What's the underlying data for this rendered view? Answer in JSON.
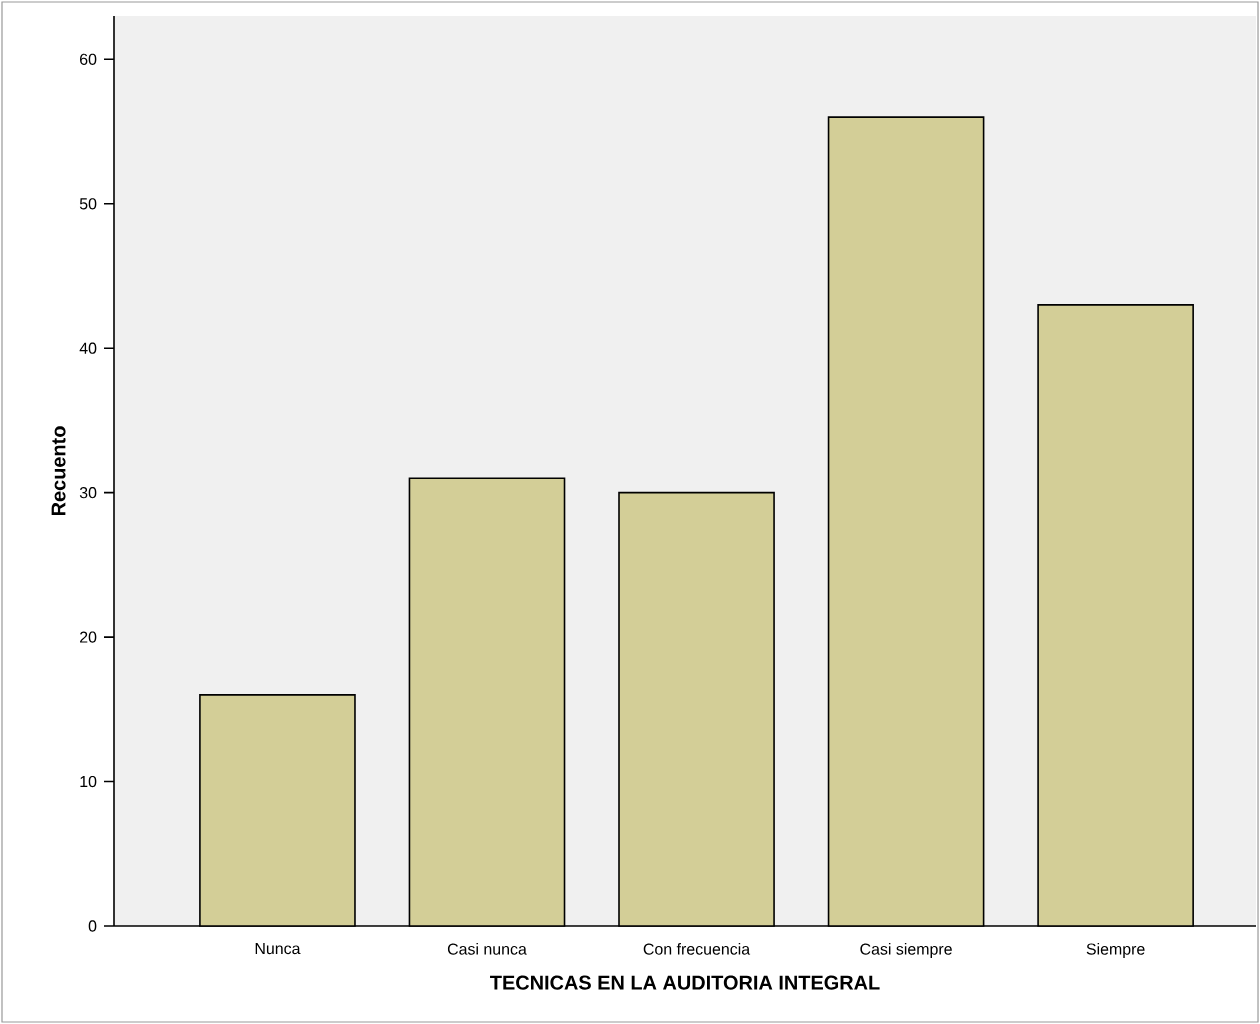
{
  "chart_data": {
    "type": "bar",
    "xlabel": "TECNICAS EN LA AUDITORIA INTEGRAL",
    "ylabel": "Recuento",
    "categories": [
      "Nunca",
      "Casi nunca",
      "Con frecuencia",
      "Casi siempre",
      "Siempre"
    ],
    "values": [
      16,
      31,
      30,
      56,
      43
    ],
    "color": "#d3ce97",
    "ylim": [
      0,
      63
    ],
    "yticks": [
      0,
      10,
      20,
      30,
      40,
      50,
      60
    ]
  }
}
